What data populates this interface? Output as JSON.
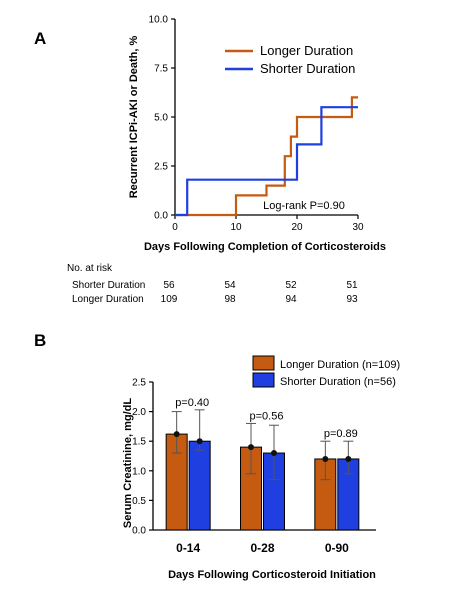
{
  "chart_data": [
    {
      "panel": "A",
      "type": "line",
      "step": true,
      "xlabel": "Days Following Completion of Corticosteroids",
      "ylabel": "Recurrent ICPi-AKI or Death, %",
      "xlim": [
        0,
        30
      ],
      "ylim": [
        0,
        10
      ],
      "xticks": [
        "0",
        "10",
        "20",
        "30"
      ],
      "yticks": [
        "0.0",
        "2.5",
        "5.0",
        "7.5",
        "10.0"
      ],
      "colors": {
        "longer": "#C55A11",
        "shorter": "#1F3FE0"
      },
      "series": [
        {
          "name": "Longer Duration",
          "key": "longer",
          "points": [
            [
              0,
              0
            ],
            [
              10,
              0
            ],
            [
              10,
              1.0
            ],
            [
              15,
              1.0
            ],
            [
              15,
              1.5
            ],
            [
              18,
              1.5
            ],
            [
              18,
              3.0
            ],
            [
              19,
              3.0
            ],
            [
              19,
              4.0
            ],
            [
              20,
              4.0
            ],
            [
              20,
              5.0
            ],
            [
              29,
              5.0
            ],
            [
              29,
              6.0
            ],
            [
              30,
              6.0
            ]
          ]
        },
        {
          "name": "Shorter Duration",
          "key": "shorter",
          "points": [
            [
              0,
              0
            ],
            [
              2,
              0
            ],
            [
              2,
              1.8
            ],
            [
              20,
              1.8
            ],
            [
              20,
              3.6
            ],
            [
              24,
              3.6
            ],
            [
              24,
              5.5
            ],
            [
              30,
              5.5
            ]
          ]
        }
      ],
      "annotation": "Log-rank P=0.90",
      "legend_position": "top-right",
      "risk_table": {
        "title": "No. at risk",
        "rows": [
          {
            "label": "Shorter Duration",
            "values": [
              "56",
              "54",
              "52",
              "51"
            ]
          },
          {
            "label": "Longer Duration",
            "values": [
              "109",
              "98",
              "94",
              "93"
            ]
          }
        ]
      }
    },
    {
      "panel": "B",
      "type": "bar",
      "categories": [
        "0-14",
        "0-28",
        "0-90"
      ],
      "xlabel": "Days Following Corticosteroid Initiation",
      "ylabel": "Serum Creatinine, mg/dL",
      "ylim": [
        0,
        2.5
      ],
      "yticks": [
        "0.0",
        "0.5",
        "1.0",
        "1.5",
        "2.0",
        "2.5"
      ],
      "series": [
        {
          "name": "Longer Duration (n=109)",
          "key": "longer",
          "color": "#C55A11",
          "values": [
            1.62,
            1.4,
            1.2
          ],
          "err_low": [
            1.3,
            0.95,
            0.85
          ],
          "err_high": [
            2.0,
            1.8,
            1.5
          ]
        },
        {
          "name": "Shorter Duration (n=56)",
          "key": "shorter",
          "color": "#1F3FE0",
          "values": [
            1.5,
            1.3,
            1.2
          ],
          "err_low": [
            1.35,
            0.85,
            0.95
          ],
          "err_high": [
            2.03,
            1.77,
            1.5
          ]
        }
      ],
      "annotations": [
        "p=0.40",
        "p=0.56",
        "p=0.89"
      ],
      "legend_position": "top-right"
    }
  ]
}
